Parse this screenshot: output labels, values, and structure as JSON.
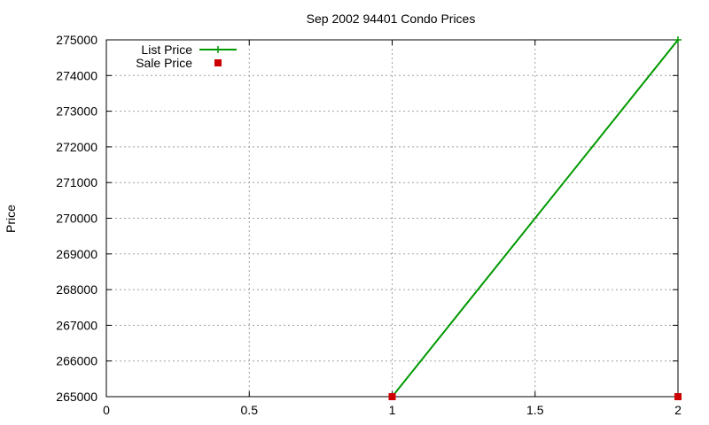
{
  "chart_data": {
    "type": "line",
    "title": "Sep 2002 94401 Condo Prices",
    "xlabel": "",
    "ylabel": "Price",
    "xlim": [
      0,
      2
    ],
    "ylim": [
      265000,
      275000
    ],
    "x_ticks": [
      "0",
      "0.5",
      "1",
      "1.5",
      "2"
    ],
    "y_ticks": [
      "265000",
      "266000",
      "267000",
      "268000",
      "269000",
      "270000",
      "271000",
      "272000",
      "273000",
      "274000",
      "275000"
    ],
    "grid": true,
    "legend_position": "top-left",
    "series": [
      {
        "name": "List Price",
        "style": "line-with-points",
        "marker": "plus",
        "color": "#009900",
        "x": [
          1,
          2
        ],
        "y": [
          265000,
          275000
        ]
      },
      {
        "name": "Sale Price",
        "style": "points",
        "marker": "square",
        "color": "#cc0000",
        "x": [
          1,
          2
        ],
        "y": [
          265000,
          265000
        ]
      }
    ]
  }
}
